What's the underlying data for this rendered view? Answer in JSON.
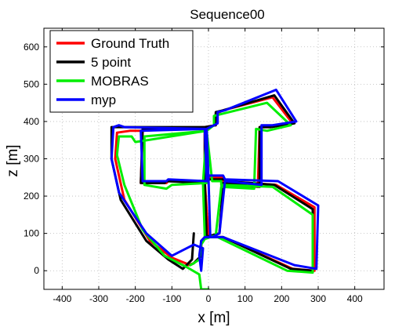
{
  "chart_data": {
    "type": "line",
    "title": "Sequence00",
    "xlabel": "x [m]",
    "ylabel": "z [m]",
    "xlim": [
      -450,
      480
    ],
    "ylim": [
      -50,
      650
    ],
    "xticks": [
      -400,
      -300,
      -200,
      -100,
      0,
      100,
      200,
      300,
      400
    ],
    "yticks": [
      0,
      100,
      200,
      300,
      400,
      500,
      600
    ],
    "grid": true,
    "legend": "top-left",
    "series": [
      {
        "name": "Ground Truth",
        "color": "#ff0000",
        "points": [
          [
            -50,
            15
          ],
          [
            -100,
            35
          ],
          [
            -160,
            80
          ],
          [
            -230,
            190
          ],
          [
            -255,
            300
          ],
          [
            -250,
            370
          ],
          [
            -215,
            375
          ],
          [
            -180,
            375
          ],
          [
            -10,
            385
          ],
          [
            -10,
            240
          ],
          [
            -110,
            240
          ],
          [
            -115,
            235
          ],
          [
            -185,
            235
          ],
          [
            -180,
            375
          ],
          [
            -10,
            385
          ],
          [
            0,
            250
          ],
          [
            40,
            250
          ],
          [
            40,
            240
          ],
          [
            185,
            230
          ],
          [
            290,
            170
          ],
          [
            290,
            0
          ],
          [
            230,
            5
          ],
          [
            40,
            90
          ],
          [
            0,
            90
          ],
          [
            -10,
            240
          ],
          [
            -10,
            385
          ],
          [
            20,
            390
          ],
          [
            20,
            420
          ],
          [
            40,
            430
          ],
          [
            175,
            465
          ],
          [
            230,
            395
          ],
          [
            170,
            385
          ],
          [
            140,
            385
          ],
          [
            135,
            225
          ],
          [
            40,
            230
          ],
          [
            30,
            100
          ],
          [
            -5,
            90
          ],
          [
            -20,
            80
          ],
          [
            -20,
            40
          ],
          [
            -40,
            20
          ],
          [
            -55,
            15
          ]
        ]
      },
      {
        "name": "5 point",
        "color": "#000000",
        "points": [
          [
            -40,
            100
          ],
          [
            -45,
            30
          ],
          [
            -70,
            5
          ],
          [
            -110,
            30
          ],
          [
            -170,
            80
          ],
          [
            -240,
            190
          ],
          [
            -265,
            300
          ],
          [
            -265,
            385
          ],
          [
            -230,
            385
          ],
          [
            -10,
            385
          ],
          [
            -10,
            235
          ],
          [
            -115,
            240
          ],
          [
            -120,
            235
          ],
          [
            -185,
            235
          ],
          [
            -180,
            380
          ],
          [
            -10,
            385
          ],
          [
            0,
            245
          ],
          [
            45,
            245
          ],
          [
            45,
            240
          ],
          [
            180,
            230
          ],
          [
            285,
            165
          ],
          [
            285,
            0
          ],
          [
            225,
            5
          ],
          [
            40,
            90
          ],
          [
            -5,
            90
          ],
          [
            -10,
            240
          ],
          [
            -10,
            385
          ],
          [
            20,
            390
          ],
          [
            20,
            425
          ],
          [
            40,
            430
          ],
          [
            180,
            470
          ],
          [
            235,
            395
          ],
          [
            170,
            385
          ],
          [
            140,
            385
          ],
          [
            140,
            225
          ],
          [
            40,
            235
          ],
          [
            30,
            100
          ],
          [
            -10,
            90
          ],
          [
            -20,
            80
          ],
          [
            -20,
            40
          ],
          [
            -40,
            20
          ],
          [
            -50,
            15
          ]
        ]
      },
      {
        "name": "MOBRAS",
        "color": "#00ee00",
        "points": [
          [
            0,
            -50
          ],
          [
            -20,
            -50
          ],
          [
            -25,
            -10
          ],
          [
            -60,
            10
          ],
          [
            -120,
            40
          ],
          [
            -180,
            110
          ],
          [
            -230,
            230
          ],
          [
            -250,
            310
          ],
          [
            -245,
            360
          ],
          [
            -210,
            360
          ],
          [
            -200,
            345
          ],
          [
            -5,
            375
          ],
          [
            -5,
            235
          ],
          [
            -100,
            230
          ],
          [
            -115,
            220
          ],
          [
            -175,
            230
          ],
          [
            -175,
            360
          ],
          [
            -5,
            375
          ],
          [
            10,
            240
          ],
          [
            35,
            240
          ],
          [
            35,
            230
          ],
          [
            175,
            225
          ],
          [
            285,
            150
          ],
          [
            285,
            -5
          ],
          [
            215,
            0
          ],
          [
            25,
            90
          ],
          [
            -10,
            90
          ],
          [
            -15,
            235
          ],
          [
            -5,
            375
          ],
          [
            15,
            390
          ],
          [
            15,
            415
          ],
          [
            35,
            420
          ],
          [
            160,
            450
          ],
          [
            225,
            390
          ],
          [
            160,
            375
          ],
          [
            130,
            380
          ],
          [
            125,
            220
          ],
          [
            35,
            225
          ],
          [
            20,
            95
          ],
          [
            -10,
            85
          ],
          [
            -20,
            70
          ],
          [
            -25,
            30
          ],
          [
            -40,
            20
          ],
          [
            -50,
            15
          ]
        ]
      },
      {
        "name": "myp",
        "color": "#0000ff",
        "points": [
          [
            -20,
            0
          ],
          [
            -15,
            60
          ],
          [
            -40,
            70
          ],
          [
            -100,
            40
          ],
          [
            -170,
            100
          ],
          [
            -245,
            210
          ],
          [
            -265,
            300
          ],
          [
            -260,
            385
          ],
          [
            -245,
            390
          ],
          [
            -230,
            385
          ],
          [
            -10,
            380
          ],
          [
            -5,
            240
          ],
          [
            -110,
            245
          ],
          [
            -115,
            240
          ],
          [
            -180,
            240
          ],
          [
            -185,
            375
          ],
          [
            -5,
            380
          ],
          [
            -5,
            255
          ],
          [
            40,
            255
          ],
          [
            45,
            245
          ],
          [
            190,
            240
          ],
          [
            300,
            175
          ],
          [
            295,
            5
          ],
          [
            235,
            15
          ],
          [
            40,
            90
          ],
          [
            5,
            90
          ],
          [
            0,
            250
          ],
          [
            -5,
            380
          ],
          [
            25,
            395
          ],
          [
            25,
            425
          ],
          [
            45,
            430
          ],
          [
            185,
            485
          ],
          [
            240,
            400
          ],
          [
            175,
            390
          ],
          [
            145,
            390
          ],
          [
            145,
            230
          ],
          [
            45,
            240
          ],
          [
            30,
            100
          ],
          [
            10,
            90
          ],
          [
            -10,
            90
          ],
          [
            -20,
            80
          ],
          [
            -25,
            40
          ],
          [
            -20,
            0
          ]
        ]
      }
    ]
  }
}
